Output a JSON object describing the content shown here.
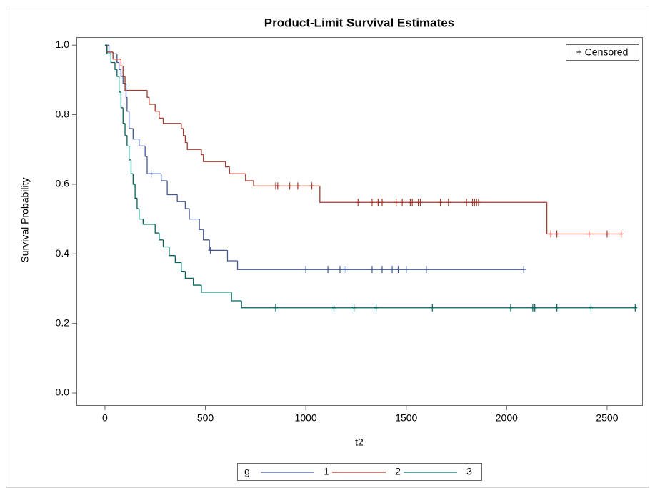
{
  "chart_data": {
    "type": "step",
    "title": "Product-Limit Survival Estimates",
    "x_label": "t2",
    "y_label": "Survival Probability",
    "legend_title": "g",
    "censored_label": "+ Censored",
    "xlim": [
      -142,
      2678
    ],
    "ylim": [
      -0.037,
      1.023
    ],
    "xticks": [
      0,
      500,
      1000,
      1500,
      2000,
      2500
    ],
    "yticks": [
      {
        "value": 0,
        "label": "0.0"
      },
      {
        "value": 0.2,
        "label": "0.2"
      },
      {
        "value": 0.4,
        "label": "0.4"
      },
      {
        "value": 0.6,
        "label": "0.6"
      },
      {
        "value": 0.8,
        "label": "0.8"
      },
      {
        "value": 1,
        "label": "1.0"
      }
    ],
    "series": [
      {
        "name": "1",
        "color": "#445694",
        "x": [
          0,
          20,
          60,
          70,
          80,
          90,
          105,
          110,
          120,
          140,
          170,
          200,
          210,
          280,
          310,
          360,
          400,
          420,
          470,
          490,
          520,
          610,
          660
        ],
        "values": [
          1.0,
          0.975,
          0.95,
          0.93,
          0.91,
          0.89,
          0.85,
          0.81,
          0.76,
          0.73,
          0.71,
          0.68,
          0.63,
          0.61,
          0.57,
          0.55,
          0.53,
          0.5,
          0.47,
          0.44,
          0.41,
          0.38,
          0.355
        ],
        "censored": {
          "x": [
            230,
            525,
            1000,
            1110,
            1170,
            1190,
            1200,
            1330,
            1380,
            1430,
            1460,
            1500,
            1600,
            2085
          ],
          "values": [
            0.63,
            0.41,
            0.355,
            0.355,
            0.355,
            0.355,
            0.355,
            0.355,
            0.355,
            0.355,
            0.355,
            0.355,
            0.355,
            0.355
          ]
        }
      },
      {
        "name": "2",
        "color": "#a23a2e",
        "x": [
          0,
          10,
          40,
          80,
          90,
          100,
          210,
          220,
          250,
          270,
          290,
          380,
          390,
          400,
          410,
          480,
          490,
          600,
          620,
          700,
          740,
          1070,
          2200
        ],
        "values": [
          1.0,
          0.98,
          0.96,
          0.94,
          0.91,
          0.87,
          0.85,
          0.83,
          0.81,
          0.79,
          0.775,
          0.76,
          0.74,
          0.72,
          0.7,
          0.685,
          0.665,
          0.65,
          0.63,
          0.61,
          0.595,
          0.548,
          0.457
        ],
        "censored": {
          "x": [
            850,
            860,
            920,
            960,
            1030,
            1260,
            1330,
            1360,
            1380,
            1450,
            1480,
            1520,
            1530,
            1560,
            1570,
            1670,
            1710,
            1800,
            1830,
            1840,
            1850,
            1860,
            2220,
            2250,
            2410,
            2500,
            2570
          ],
          "values": [
            0.595,
            0.595,
            0.595,
            0.595,
            0.595,
            0.548,
            0.548,
            0.548,
            0.548,
            0.548,
            0.548,
            0.548,
            0.548,
            0.548,
            0.548,
            0.548,
            0.548,
            0.548,
            0.548,
            0.548,
            0.548,
            0.548,
            0.457,
            0.457,
            0.457,
            0.457,
            0.457
          ]
        }
      },
      {
        "name": "3",
        "color": "#01665e",
        "x": [
          0,
          10,
          30,
          50,
          60,
          70,
          80,
          90,
          100,
          110,
          120,
          130,
          140,
          150,
          160,
          170,
          190,
          250,
          270,
          290,
          320,
          350,
          380,
          400,
          440,
          480,
          630,
          680
        ],
        "values": [
          1.0,
          0.975,
          0.95,
          0.93,
          0.91,
          0.865,
          0.82,
          0.775,
          0.74,
          0.71,
          0.67,
          0.63,
          0.6,
          0.56,
          0.53,
          0.5,
          0.485,
          0.46,
          0.44,
          0.42,
          0.395,
          0.375,
          0.35,
          0.33,
          0.31,
          0.29,
          0.265,
          0.245
        ],
        "censored": {
          "x": [
            850,
            1140,
            1240,
            1350,
            1630,
            2020,
            2130,
            2140,
            2250,
            2420,
            2640
          ],
          "values": [
            0.245,
            0.245,
            0.245,
            0.245,
            0.245,
            0.245,
            0.245,
            0.245,
            0.245,
            0.245,
            0.245
          ]
        }
      }
    ]
  }
}
